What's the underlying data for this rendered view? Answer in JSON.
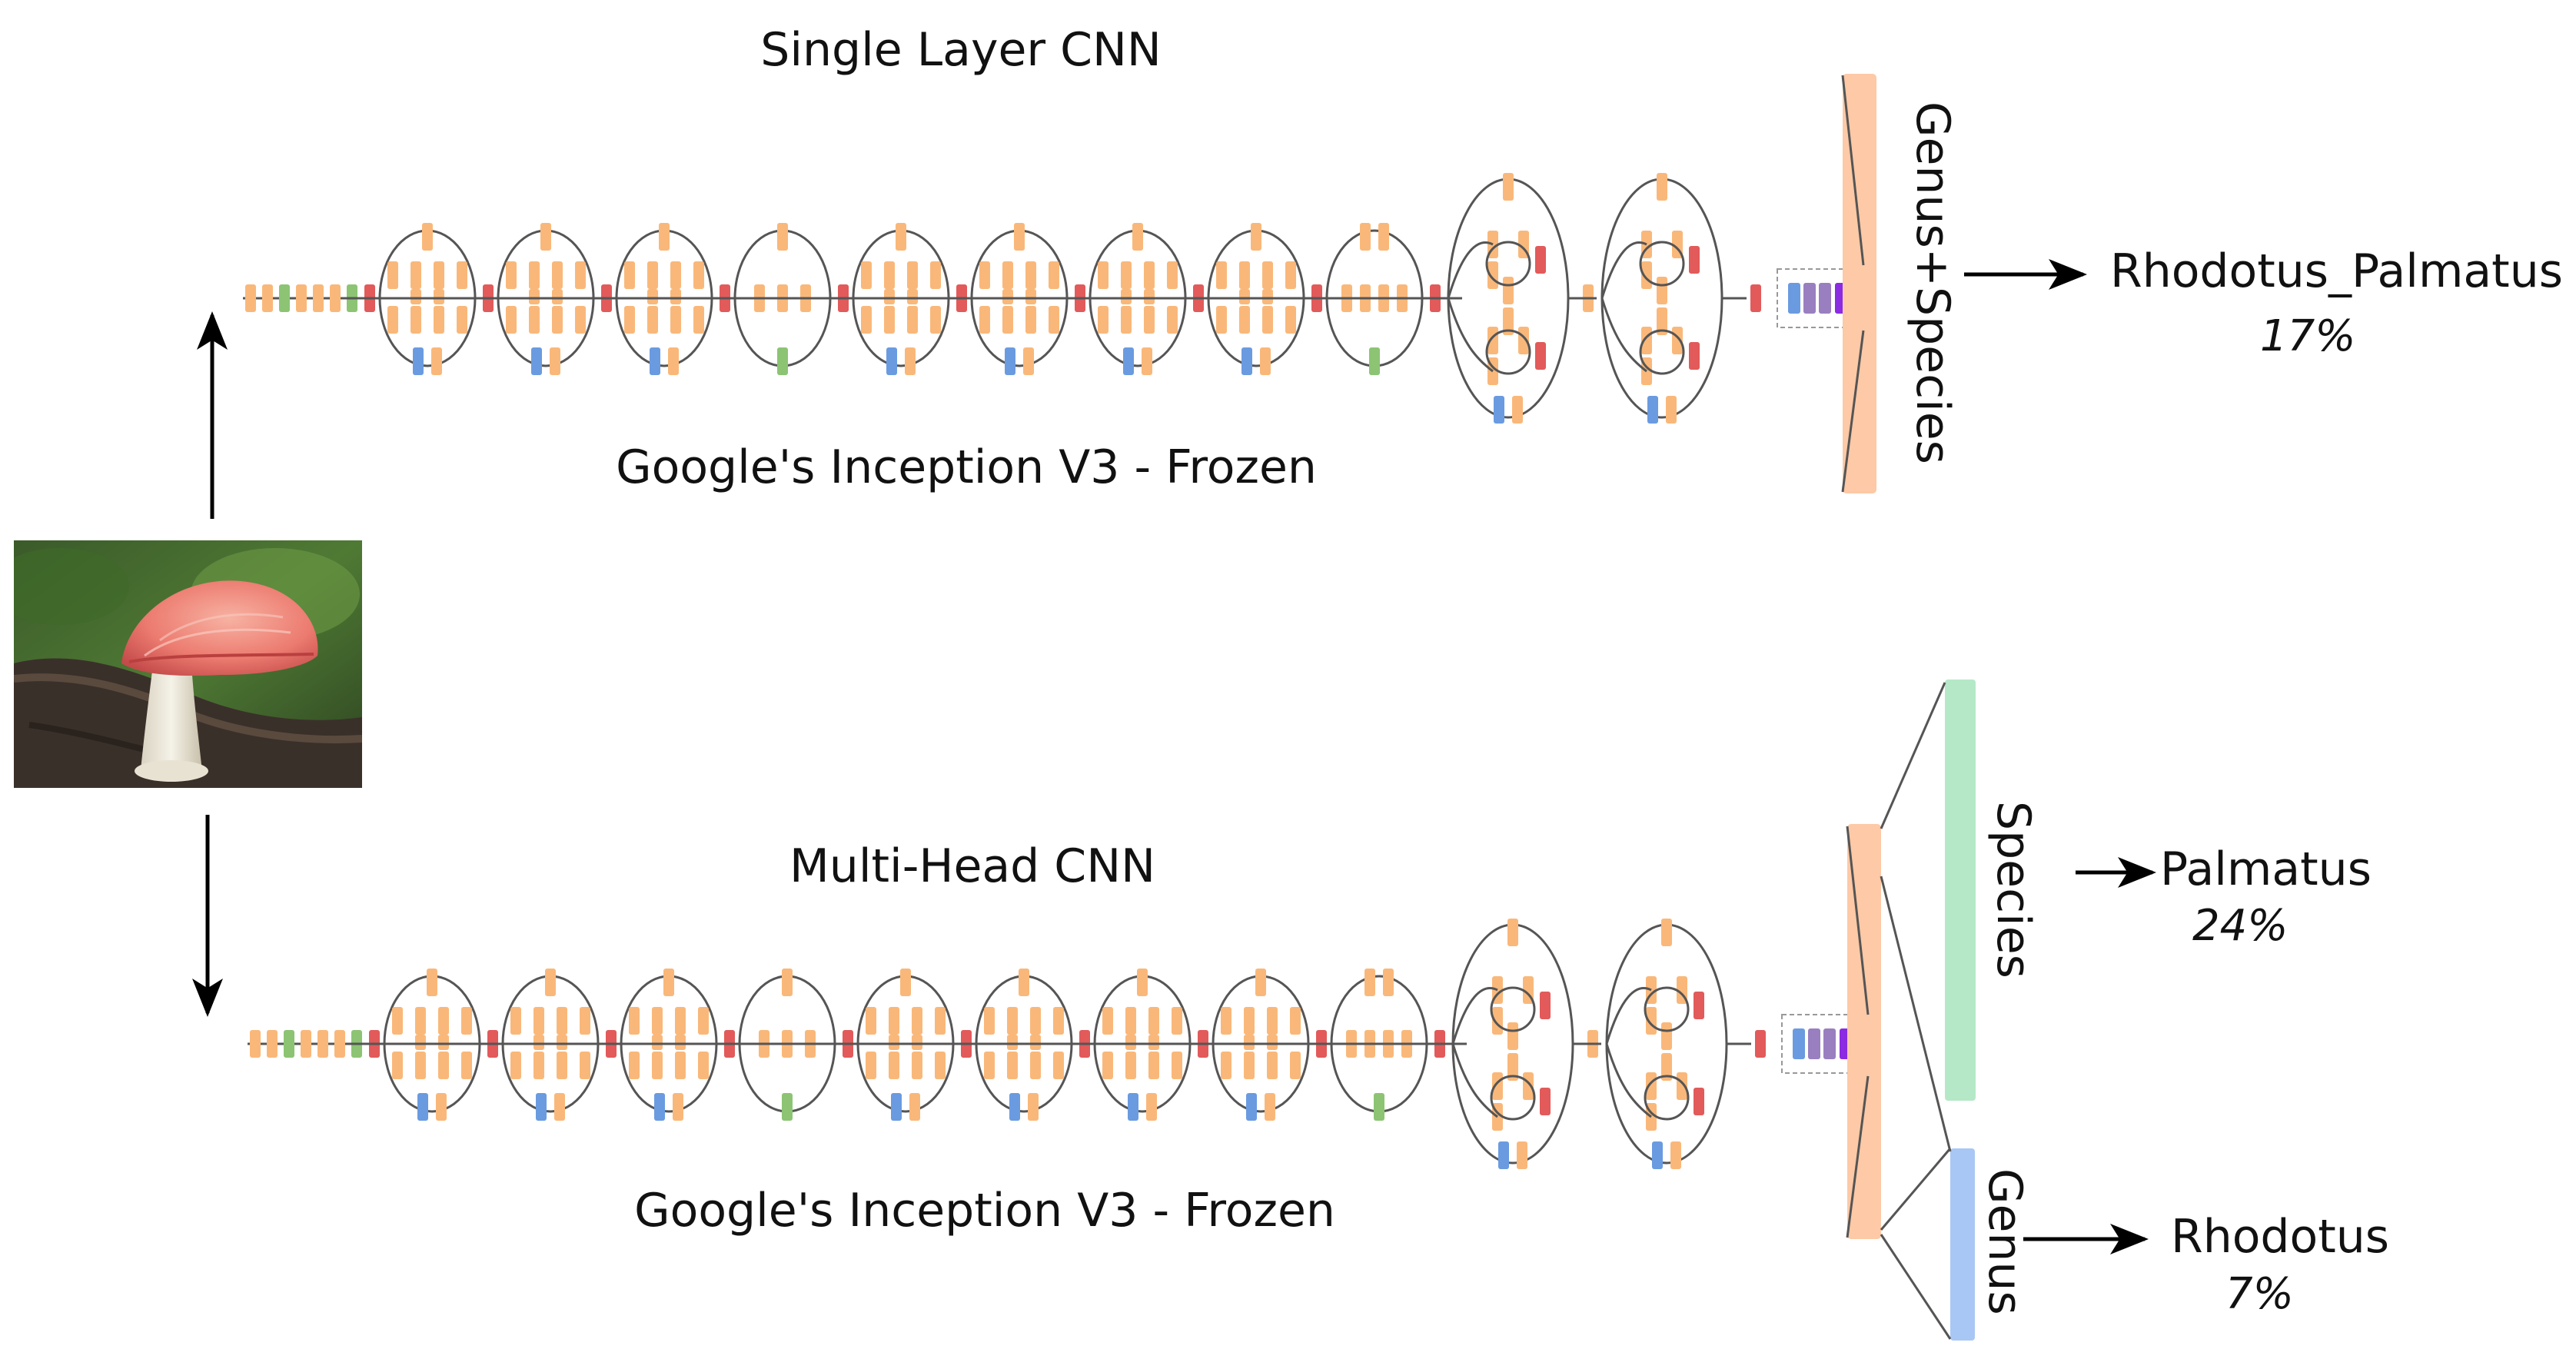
{
  "top": {
    "title": "Single Layer CNN",
    "subtitle": "Google's Inception V3 - Frozen",
    "head_label": "Genus+Species",
    "prediction": "Rhodotus_Palmatus",
    "confidence": "17%"
  },
  "bottom": {
    "title": "Multi-Head CNN",
    "subtitle": "Google's Inception V3 - Frozen",
    "species_head_label": "Species",
    "species_prediction": "Palmatus",
    "species_confidence": "24%",
    "genus_head_label": "Genus",
    "genus_prediction": "Rhodotus",
    "genus_confidence": "7%"
  },
  "colors": {
    "conv": "#f9b87a",
    "pool": "#e25a5a",
    "avgpool": "#8cc474",
    "concat": "#6a9be0",
    "purple": "#8b2be2",
    "mauve": "#9a7fc0",
    "head_single": "#fdc9a6",
    "head_species": "#b5e8c7",
    "head_genus": "#a9c7f5",
    "line": "#555555"
  },
  "icons": {
    "input_image": "mushroom-photo"
  }
}
